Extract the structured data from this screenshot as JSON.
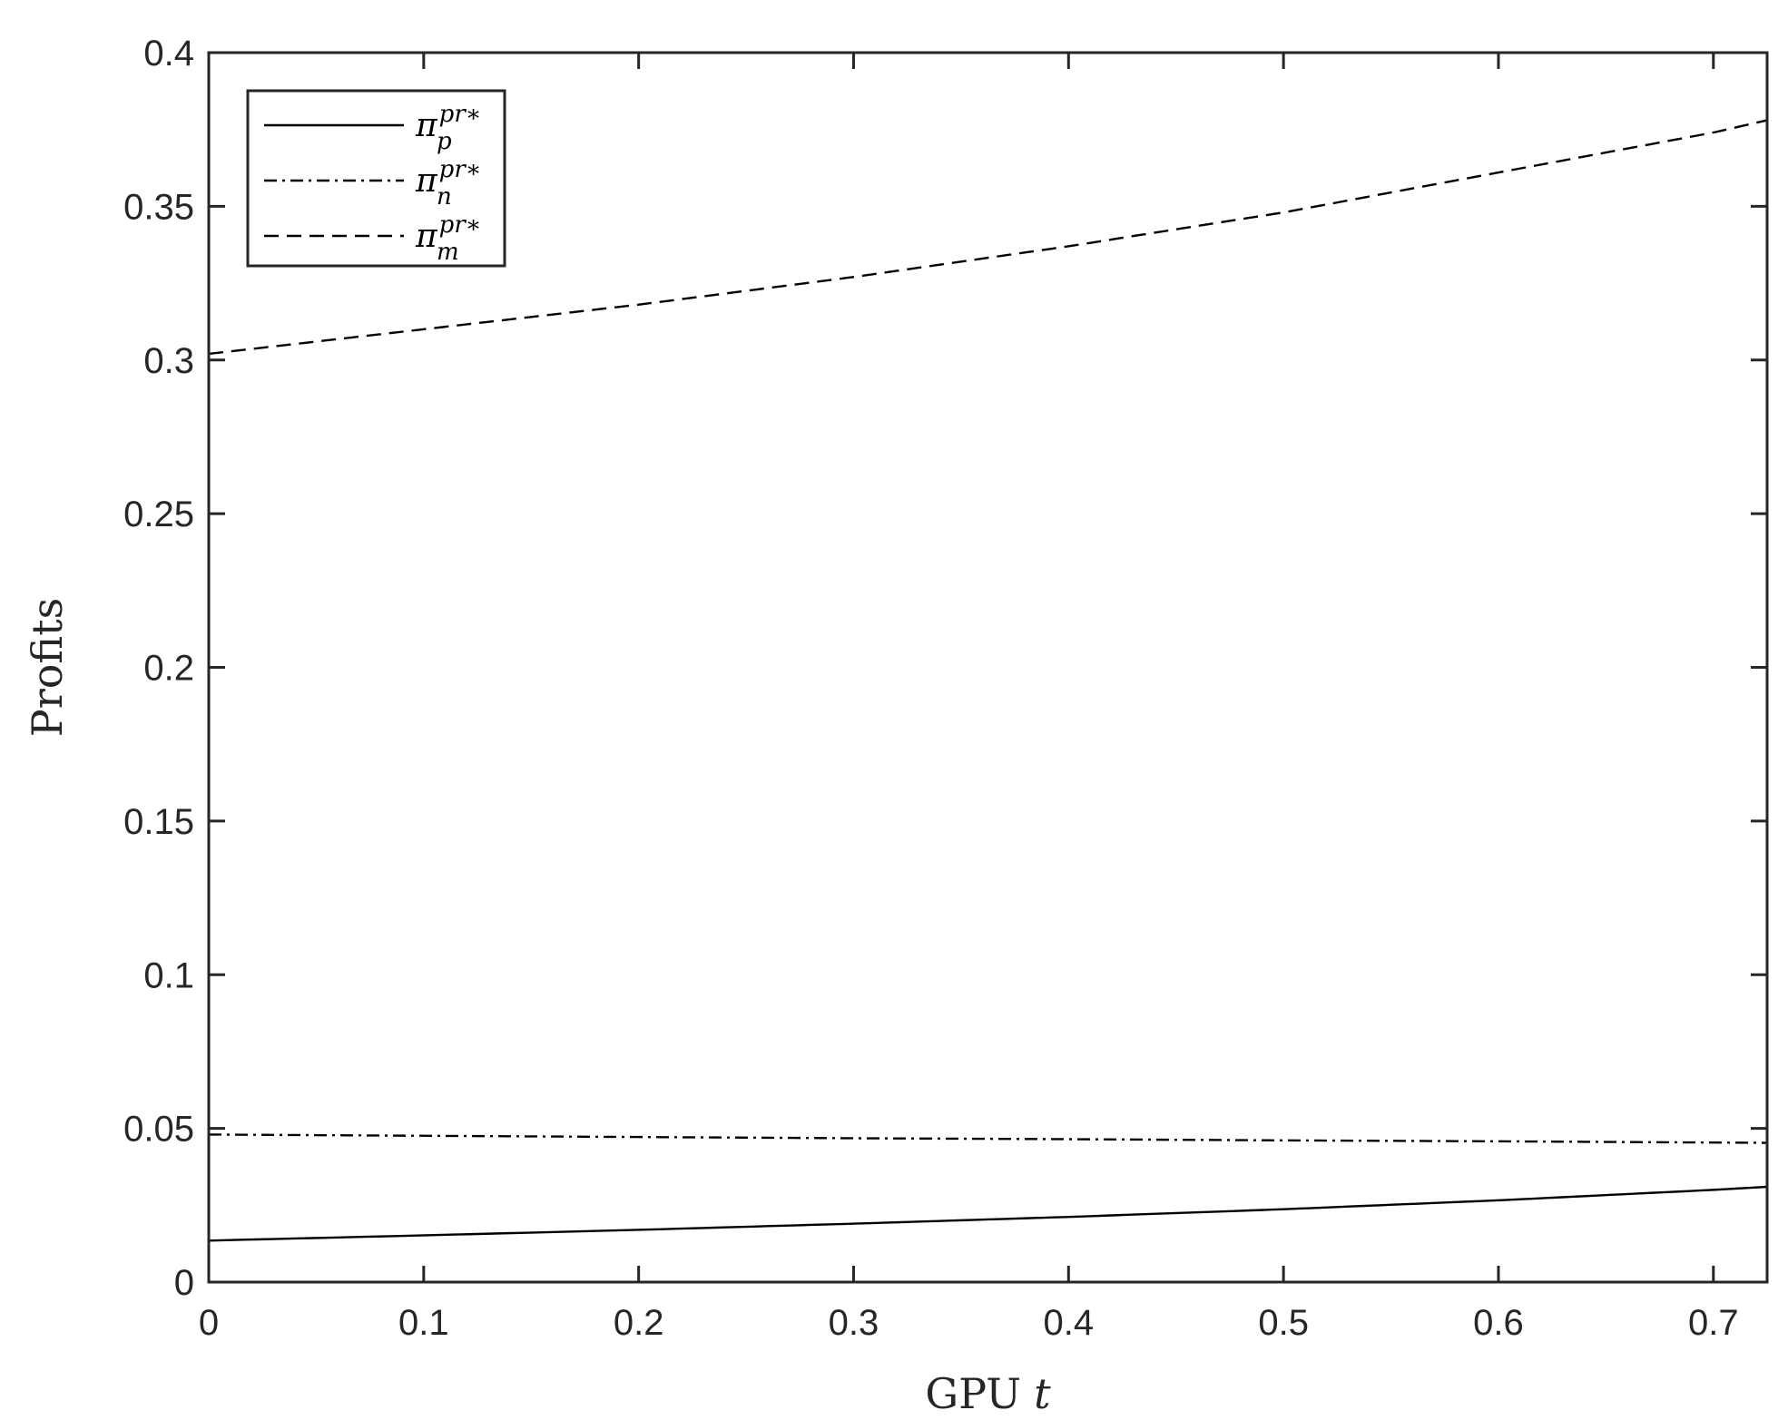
{
  "chart_data": {
    "type": "line",
    "xlabel": "GPU",
    "xlabel_var": "t",
    "ylabel": "Profits",
    "xlim": [
      0,
      0.725
    ],
    "ylim": [
      0,
      0.4
    ],
    "xticks": [
      "0",
      "0.1",
      "0.2",
      "0.3",
      "0.4",
      "0.5",
      "0.6",
      "0.7"
    ],
    "yticks": [
      "0",
      "0.05",
      "0.1",
      "0.15",
      "0.2",
      "0.25",
      "0.3",
      "0.35",
      "0.4"
    ],
    "grid": false,
    "legend_position": "top-left",
    "x": [
      0,
      0.1,
      0.2,
      0.3,
      0.4,
      0.5,
      0.6,
      0.7,
      0.725
    ],
    "series": [
      {
        "name": "π_p^{pr*}",
        "symbol": "π",
        "sub": "p",
        "sup": "pr∗",
        "style": "solid",
        "values": [
          0.0135,
          0.0152,
          0.017,
          0.019,
          0.0212,
          0.0237,
          0.0266,
          0.03,
          0.031
        ]
      },
      {
        "name": "π_n^{pr*}",
        "symbol": "π",
        "sub": "n",
        "sup": "pr∗",
        "style": "dashdot",
        "values": [
          0.048,
          0.0476,
          0.0472,
          0.0468,
          0.0465,
          0.0461,
          0.0458,
          0.0454,
          0.0453
        ]
      },
      {
        "name": "π_m^{pr*}",
        "symbol": "π",
        "sub": "m",
        "sup": "pr∗",
        "style": "dashed",
        "values": [
          0.302,
          0.31,
          0.318,
          0.327,
          0.337,
          0.348,
          0.361,
          0.374,
          0.378
        ]
      }
    ],
    "colors": {
      "lines": "#000000",
      "axes": "#262626",
      "background": "#ffffff"
    }
  }
}
